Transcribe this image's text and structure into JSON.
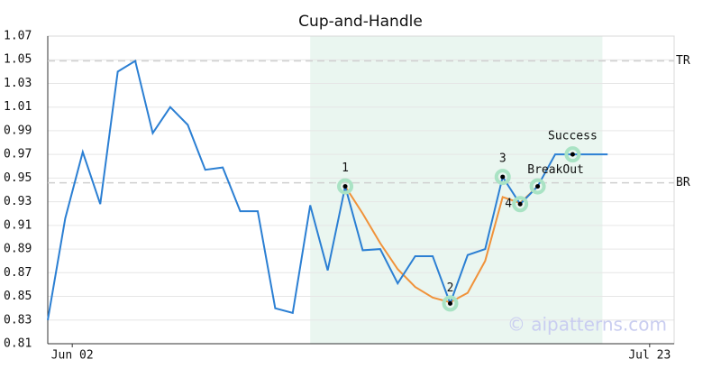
{
  "chart_data": {
    "type": "line",
    "title": "Cup-and-Handle",
    "x": [
      0,
      1,
      2,
      3,
      4,
      5,
      6,
      7,
      8,
      9,
      10,
      11,
      12,
      13,
      14,
      15,
      16,
      17,
      18,
      19,
      20,
      21,
      22,
      23,
      24,
      25,
      26,
      27,
      28,
      29,
      30,
      31,
      32
    ],
    "xlim": [
      0,
      35.8
    ],
    "xticks": [
      {
        "value": 1.4,
        "label": "Jun 02"
      },
      {
        "value": 34.4,
        "label": "Jul 23"
      }
    ],
    "ylim": [
      0.81,
      1.07
    ],
    "yticks": [
      0.81,
      0.83,
      0.85,
      0.87,
      0.89,
      0.91,
      0.93,
      0.95,
      0.97,
      0.99,
      1.01,
      1.03,
      1.05,
      1.07
    ],
    "grid": true,
    "series": [
      {
        "color": "#2b7fd3",
        "values": [
          0.83,
          0.916,
          0.972,
          0.928,
          1.04,
          1.049,
          0.988,
          1.01,
          0.995,
          0.957,
          0.959,
          0.922,
          0.922,
          0.84,
          0.836,
          0.927,
          0.872,
          0.943,
          0.889,
          0.89,
          0.861,
          0.884,
          0.884,
          0.844,
          0.885,
          0.89,
          0.951,
          0.928,
          0.943,
          0.97,
          0.97,
          0.97,
          0.97
        ]
      },
      {
        "color": "#f0923a",
        "values": [
          null,
          null,
          null,
          null,
          null,
          null,
          null,
          null,
          null,
          null,
          null,
          null,
          null,
          null,
          null,
          null,
          null,
          0.943,
          0.92,
          0.895,
          0.873,
          0.858,
          0.849,
          0.845,
          0.853,
          0.88,
          0.934,
          0.929,
          0.943,
          null,
          null,
          null,
          null
        ]
      }
    ],
    "highlight": {
      "xlim": [
        15,
        31.7
      ],
      "color": "#eaf6f0"
    },
    "levels": [
      {
        "label": "TR",
        "value": 1.049
      },
      {
        "label": "BR",
        "value": 0.946
      }
    ],
    "annotations": [
      {
        "label": "1",
        "x": 17,
        "y": 0.943
      },
      {
        "label": "2",
        "x": 23,
        "y": 0.844
      },
      {
        "label": "3",
        "x": 26,
        "y": 0.951
      },
      {
        "label": "4",
        "x": 27,
        "y": 0.928
      },
      {
        "label": "BreakOut",
        "x": 28,
        "y": 0.943
      },
      {
        "label": "Success",
        "x": 30,
        "y": 0.97
      }
    ],
    "watermark": "© aipatterns.com"
  }
}
